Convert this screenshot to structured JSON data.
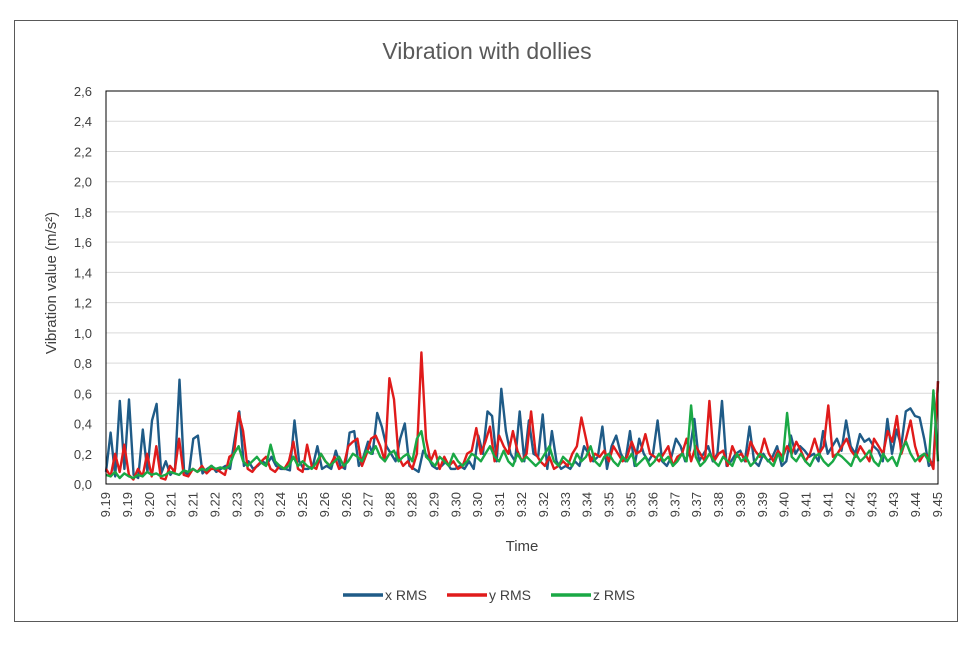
{
  "chart_data": {
    "type": "line",
    "title": "Vibration with dollies",
    "xlabel": "Time",
    "ylabel": "Vibration value (m/s²)",
    "ylim": [
      0,
      2.6
    ],
    "y_ticks": [
      "0,0",
      "0,2",
      "0,4",
      "0,6",
      "0,8",
      "1,0",
      "1,2",
      "1,4",
      "1,6",
      "1,8",
      "2,0",
      "2,2",
      "2,4",
      "2,6"
    ],
    "x_tick_labels": [
      "9.19",
      "9.19",
      "9.20",
      "9.21",
      "9.21",
      "9.22",
      "9.23",
      "9.23",
      "9.24",
      "9.25",
      "9.26",
      "9.26",
      "9.27",
      "9.28",
      "9.28",
      "9.29",
      "9.30",
      "9.30",
      "9.31",
      "9.32",
      "9.32",
      "9.33",
      "9.34",
      "9.35",
      "9.35",
      "9.36",
      "9.37",
      "9.37",
      "9.38",
      "9.39",
      "9.39",
      "9.40",
      "9.41",
      "9.41",
      "9.42",
      "9.43",
      "9.43",
      "9.44",
      "9.45"
    ],
    "grid": true,
    "legend_position": "bottom",
    "series": [
      {
        "name": "x RMS",
        "color": "#1f5b87",
        "values": [
          0.08,
          0.34,
          0.05,
          0.55,
          0.1,
          0.56,
          0.06,
          0.04,
          0.36,
          0.08,
          0.42,
          0.53,
          0.07,
          0.15,
          0.06,
          0.1,
          0.69,
          0.08,
          0.06,
          0.3,
          0.32,
          0.07,
          0.1,
          0.12,
          0.08,
          0.1,
          0.12,
          0.1,
          0.3,
          0.48,
          0.12,
          0.15,
          0.1,
          0.12,
          0.15,
          0.13,
          0.18,
          0.12,
          0.1,
          0.1,
          0.09,
          0.42,
          0.15,
          0.1,
          0.1,
          0.12,
          0.25,
          0.1,
          0.12,
          0.1,
          0.22,
          0.12,
          0.1,
          0.34,
          0.35,
          0.12,
          0.18,
          0.28,
          0.2,
          0.47,
          0.38,
          0.25,
          0.2,
          0.15,
          0.3,
          0.4,
          0.12,
          0.1,
          0.08,
          0.22,
          0.18,
          0.12,
          0.1,
          0.12,
          0.15,
          0.1,
          0.1,
          0.12,
          0.1,
          0.15,
          0.1,
          0.32,
          0.2,
          0.48,
          0.45,
          0.15,
          0.63,
          0.35,
          0.2,
          0.15,
          0.48,
          0.15,
          0.42,
          0.2,
          0.18,
          0.46,
          0.1,
          0.35,
          0.15,
          0.1,
          0.12,
          0.1,
          0.15,
          0.12,
          0.25,
          0.2,
          0.15,
          0.18,
          0.38,
          0.1,
          0.25,
          0.32,
          0.2,
          0.15,
          0.35,
          0.12,
          0.3,
          0.2,
          0.15,
          0.2,
          0.42,
          0.15,
          0.12,
          0.18,
          0.3,
          0.25,
          0.15,
          0.22,
          0.43,
          0.15,
          0.2,
          0.25,
          0.15,
          0.2,
          0.55,
          0.12,
          0.15,
          0.2,
          0.22,
          0.15,
          0.38,
          0.15,
          0.12,
          0.2,
          0.15,
          0.18,
          0.25,
          0.12,
          0.15,
          0.32,
          0.2,
          0.25,
          0.22,
          0.18,
          0.2,
          0.15,
          0.35,
          0.2,
          0.25,
          0.3,
          0.22,
          0.42,
          0.25,
          0.2,
          0.33,
          0.28,
          0.3,
          0.25,
          0.22,
          0.15,
          0.43,
          0.2,
          0.36,
          0.25,
          0.48,
          0.5,
          0.45,
          0.44,
          0.3,
          0.12,
          0.15,
          0.68
        ]
      },
      {
        "name": "y RMS",
        "color": "#e01b1b",
        "values": [
          0.1,
          0.05,
          0.2,
          0.08,
          0.26,
          0.06,
          0.03,
          0.1,
          0.05,
          0.2,
          0.05,
          0.25,
          0.04,
          0.03,
          0.12,
          0.08,
          0.3,
          0.06,
          0.05,
          0.1,
          0.08,
          0.12,
          0.07,
          0.1,
          0.1,
          0.08,
          0.06,
          0.18,
          0.2,
          0.47,
          0.35,
          0.1,
          0.08,
          0.12,
          0.15,
          0.18,
          0.1,
          0.08,
          0.12,
          0.1,
          0.15,
          0.28,
          0.1,
          0.08,
          0.26,
          0.12,
          0.1,
          0.2,
          0.15,
          0.12,
          0.18,
          0.1,
          0.12,
          0.25,
          0.28,
          0.3,
          0.12,
          0.2,
          0.3,
          0.32,
          0.25,
          0.15,
          0.7,
          0.56,
          0.18,
          0.12,
          0.15,
          0.1,
          0.2,
          0.87,
          0.3,
          0.15,
          0.22,
          0.1,
          0.18,
          0.12,
          0.15,
          0.1,
          0.12,
          0.2,
          0.22,
          0.37,
          0.2,
          0.28,
          0.38,
          0.15,
          0.32,
          0.25,
          0.2,
          0.35,
          0.22,
          0.15,
          0.2,
          0.48,
          0.2,
          0.15,
          0.12,
          0.18,
          0.1,
          0.12,
          0.15,
          0.12,
          0.2,
          0.25,
          0.44,
          0.3,
          0.15,
          0.2,
          0.18,
          0.22,
          0.15,
          0.25,
          0.2,
          0.15,
          0.18,
          0.28,
          0.2,
          0.22,
          0.33,
          0.2,
          0.18,
          0.15,
          0.2,
          0.25,
          0.12,
          0.18,
          0.2,
          0.3,
          0.15,
          0.25,
          0.2,
          0.15,
          0.55,
          0.15,
          0.2,
          0.22,
          0.12,
          0.25,
          0.18,
          0.2,
          0.15,
          0.28,
          0.22,
          0.18,
          0.3,
          0.2,
          0.15,
          0.22,
          0.18,
          0.25,
          0.2,
          0.28,
          0.22,
          0.15,
          0.2,
          0.3,
          0.2,
          0.25,
          0.52,
          0.18,
          0.2,
          0.25,
          0.3,
          0.22,
          0.18,
          0.25,
          0.2,
          0.15,
          0.3,
          0.25,
          0.2,
          0.35,
          0.28,
          0.45,
          0.2,
          0.3,
          0.42,
          0.25,
          0.15,
          0.2,
          0.18,
          0.1,
          0.68
        ]
      },
      {
        "name": "z RMS",
        "color": "#1aa845",
        "values": [
          0.06,
          0.05,
          0.08,
          0.04,
          0.07,
          0.05,
          0.04,
          0.06,
          0.05,
          0.08,
          0.06,
          0.07,
          0.05,
          0.06,
          0.08,
          0.07,
          0.06,
          0.09,
          0.08,
          0.1,
          0.08,
          0.1,
          0.09,
          0.12,
          0.1,
          0.11,
          0.1,
          0.12,
          0.2,
          0.25,
          0.15,
          0.12,
          0.15,
          0.18,
          0.14,
          0.12,
          0.26,
          0.15,
          0.12,
          0.1,
          0.12,
          0.18,
          0.12,
          0.15,
          0.12,
          0.1,
          0.14,
          0.2,
          0.15,
          0.12,
          0.15,
          0.18,
          0.12,
          0.15,
          0.2,
          0.18,
          0.15,
          0.22,
          0.2,
          0.25,
          0.18,
          0.15,
          0.2,
          0.22,
          0.15,
          0.18,
          0.2,
          0.15,
          0.3,
          0.35,
          0.18,
          0.15,
          0.12,
          0.18,
          0.15,
          0.12,
          0.2,
          0.15,
          0.12,
          0.15,
          0.2,
          0.18,
          0.15,
          0.2,
          0.25,
          0.18,
          0.15,
          0.22,
          0.15,
          0.12,
          0.2,
          0.15,
          0.18,
          0.15,
          0.12,
          0.15,
          0.2,
          0.25,
          0.15,
          0.12,
          0.18,
          0.15,
          0.12,
          0.2,
          0.15,
          0.18,
          0.25,
          0.15,
          0.12,
          0.18,
          0.2,
          0.15,
          0.12,
          0.18,
          0.15,
          0.2,
          0.12,
          0.15,
          0.18,
          0.12,
          0.15,
          0.2,
          0.15,
          0.18,
          0.12,
          0.15,
          0.2,
          0.15,
          0.52,
          0.18,
          0.12,
          0.15,
          0.2,
          0.15,
          0.12,
          0.18,
          0.15,
          0.12,
          0.2,
          0.15,
          0.18,
          0.12,
          0.15,
          0.2,
          0.18,
          0.15,
          0.12,
          0.2,
          0.15,
          0.47,
          0.18,
          0.15,
          0.2,
          0.15,
          0.12,
          0.18,
          0.2,
          0.15,
          0.12,
          0.15,
          0.2,
          0.18,
          0.15,
          0.12,
          0.2,
          0.15,
          0.18,
          0.22,
          0.15,
          0.12,
          0.2,
          0.15,
          0.18,
          0.12,
          0.22,
          0.28,
          0.2,
          0.15,
          0.18,
          0.2,
          0.15,
          0.62,
          0.15
        ]
      }
    ]
  }
}
